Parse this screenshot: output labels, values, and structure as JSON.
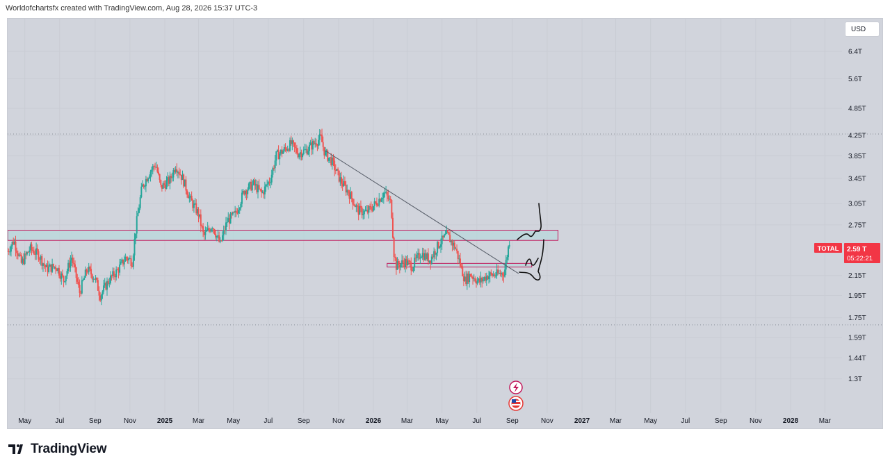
{
  "header": {
    "attribution": "Worldofchartsfx created with TradingView.com, Aug 28, 2026 15:37 UTC-3"
  },
  "currency_button": "USD",
  "brand": {
    "name": "TradingView",
    "logo_icon": "tradingview-logo-icon"
  },
  "symbol_badge": {
    "symbol": "TOTAL",
    "price": "2.59 T",
    "countdown": "05:22:21",
    "color": "#f23645"
  },
  "colors": {
    "up": "#26a69a",
    "down": "#ef5350",
    "zone_fill": "#b8d8dc",
    "zone_border": "#c2185b",
    "trendline": "#555b66",
    "drawing": "#111111",
    "background": "#d1d4dc"
  },
  "icons": [
    "lightning-event-icon",
    "us-flag-event-icon"
  ],
  "chart_data": {
    "type": "candlestick",
    "title": "",
    "y_scale": "log",
    "ylim": [
      1.1,
      7.5
    ],
    "y_ticks": [
      "6.4T",
      "5.6T",
      "4.85T",
      "4.25T",
      "3.85T",
      "3.45T",
      "3.05T",
      "2.75T",
      "2.15T",
      "1.95T",
      "1.75T",
      "1.59T",
      "1.44T",
      "1.3T"
    ],
    "y_tick_values": [
      6.4,
      5.6,
      4.85,
      4.25,
      3.85,
      3.45,
      3.05,
      2.75,
      2.15,
      1.95,
      1.75,
      1.59,
      1.44,
      1.3
    ],
    "x_range": [
      "2024-04-01",
      "2028-03-31"
    ],
    "x_ticks": [
      {
        "label": "May",
        "date": "2024-05-01",
        "year": false
      },
      {
        "label": "Jul",
        "date": "2024-07-01",
        "year": false
      },
      {
        "label": "Sep",
        "date": "2024-09-01",
        "year": false
      },
      {
        "label": "Nov",
        "date": "2024-11-01",
        "year": false
      },
      {
        "label": "2025",
        "date": "2025-01-01",
        "year": true
      },
      {
        "label": "Mar",
        "date": "2025-03-01",
        "year": false
      },
      {
        "label": "May",
        "date": "2025-05-01",
        "year": false
      },
      {
        "label": "Jul",
        "date": "2025-07-01",
        "year": false
      },
      {
        "label": "Sep",
        "date": "2025-09-01",
        "year": false
      },
      {
        "label": "Nov",
        "date": "2025-11-01",
        "year": false
      },
      {
        "label": "2026",
        "date": "2026-01-01",
        "year": true
      },
      {
        "label": "Mar",
        "date": "2026-03-01",
        "year": false
      },
      {
        "label": "May",
        "date": "2026-05-01",
        "year": false
      },
      {
        "label": "Jul",
        "date": "2026-07-01",
        "year": false
      },
      {
        "label": "Sep",
        "date": "2026-09-01",
        "year": false
      },
      {
        "label": "Nov",
        "date": "2026-11-01",
        "year": false
      },
      {
        "label": "2027",
        "date": "2027-01-01",
        "year": true
      },
      {
        "label": "Mar",
        "date": "2027-03-01",
        "year": false
      },
      {
        "label": "May",
        "date": "2027-05-01",
        "year": false
      },
      {
        "label": "Jul",
        "date": "2027-07-01",
        "year": false
      },
      {
        "label": "Sep",
        "date": "2027-09-01",
        "year": false
      },
      {
        "label": "Nov",
        "date": "2027-11-01",
        "year": false
      },
      {
        "label": "2028",
        "date": "2028-01-01",
        "year": true
      },
      {
        "label": "Mar",
        "date": "2028-03-01",
        "year": false
      }
    ],
    "price_path": [
      [
        "2024-04-01",
        2.42
      ],
      [
        "2024-04-12",
        2.55
      ],
      [
        "2024-04-25",
        2.28
      ],
      [
        "2024-05-10",
        2.45
      ],
      [
        "2024-05-25",
        2.38
      ],
      [
        "2024-06-08",
        2.22
      ],
      [
        "2024-06-25",
        2.25
      ],
      [
        "2024-07-08",
        2.1
      ],
      [
        "2024-07-22",
        2.35
      ],
      [
        "2024-08-05",
        1.98
      ],
      [
        "2024-08-18",
        2.22
      ],
      [
        "2024-09-01",
        2.12
      ],
      [
        "2024-09-10",
        1.95
      ],
      [
        "2024-09-25",
        2.1
      ],
      [
        "2024-10-10",
        2.2
      ],
      [
        "2024-10-25",
        2.35
      ],
      [
        "2024-11-05",
        2.3
      ],
      [
        "2024-11-12",
        2.75
      ],
      [
        "2024-11-22",
        3.3
      ],
      [
        "2024-12-05",
        3.55
      ],
      [
        "2024-12-16",
        3.7
      ],
      [
        "2024-12-25",
        3.3
      ],
      [
        "2025-01-10",
        3.42
      ],
      [
        "2025-01-20",
        3.68
      ],
      [
        "2025-02-01",
        3.45
      ],
      [
        "2025-02-15",
        3.1
      ],
      [
        "2025-03-01",
        2.9
      ],
      [
        "2025-03-10",
        2.6
      ],
      [
        "2025-03-25",
        2.75
      ],
      [
        "2025-04-08",
        2.5
      ],
      [
        "2025-04-20",
        2.8
      ],
      [
        "2025-05-05",
        2.9
      ],
      [
        "2025-05-20",
        3.25
      ],
      [
        "2025-06-05",
        3.35
      ],
      [
        "2025-06-20",
        3.2
      ],
      [
        "2025-07-05",
        3.45
      ],
      [
        "2025-07-15",
        3.85
      ],
      [
        "2025-07-28",
        3.95
      ],
      [
        "2025-08-10",
        4.08
      ],
      [
        "2025-08-22",
        3.9
      ],
      [
        "2025-09-05",
        3.95
      ],
      [
        "2025-09-18",
        4.08
      ],
      [
        "2025-10-01",
        4.2
      ],
      [
        "2025-10-08",
        3.9
      ],
      [
        "2025-10-20",
        3.75
      ],
      [
        "2025-11-05",
        3.4
      ],
      [
        "2025-11-20",
        3.2
      ],
      [
        "2025-12-05",
        2.95
      ],
      [
        "2025-12-20",
        2.92
      ],
      [
        "2026-01-05",
        3.05
      ],
      [
        "2026-01-20",
        3.22
      ],
      [
        "2026-02-01",
        3.05
      ],
      [
        "2026-02-06",
        2.4
      ],
      [
        "2026-02-10",
        2.25
      ],
      [
        "2026-02-25",
        2.3
      ],
      [
        "2026-03-10",
        2.25
      ],
      [
        "2026-03-25",
        2.4
      ],
      [
        "2026-04-10",
        2.32
      ],
      [
        "2026-04-25",
        2.5
      ],
      [
        "2026-05-10",
        2.62
      ],
      [
        "2026-05-25",
        2.45
      ],
      [
        "2026-06-10",
        2.1
      ],
      [
        "2026-06-20",
        2.16
      ],
      [
        "2026-07-05",
        2.08
      ],
      [
        "2026-07-20",
        2.15
      ],
      [
        "2026-08-05",
        2.16
      ],
      [
        "2026-08-18",
        2.18
      ],
      [
        "2026-08-24",
        2.42
      ],
      [
        "2026-08-28",
        2.59
      ]
    ],
    "resistance_zone": {
      "x_start": "2024-04-01",
      "x_end": "2026-11-20",
      "y_low": 2.55,
      "y_high": 2.68
    },
    "support_zone": {
      "x_start": "2026-01-25",
      "x_end": "2026-10-05",
      "y_low": 2.24,
      "y_high": 2.28
    },
    "trendline": {
      "from": [
        "2025-10-08",
        3.95
      ],
      "to": [
        "2026-09-12",
        2.17
      ]
    },
    "dotted_levels": [
      4.28,
      1.69
    ],
    "last_price": 2.59
  }
}
